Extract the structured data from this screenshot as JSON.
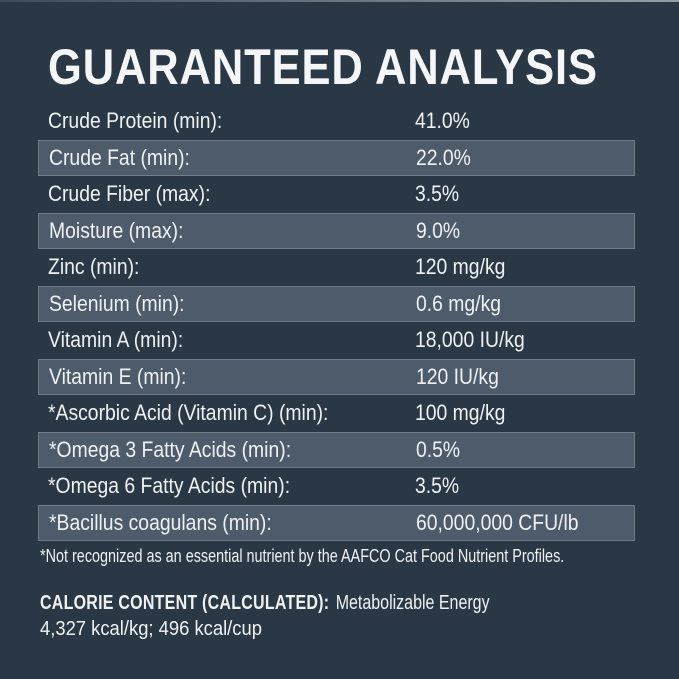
{
  "colors": {
    "background": "#2a3845",
    "stripe": "#4d5b6a",
    "stripe_border": "#6e7b88",
    "text": "#eef2f4"
  },
  "header": {
    "title": "GUARANTEED ANALYSIS"
  },
  "analysis_table": {
    "rows": [
      {
        "label": "Crude Protein (min):",
        "value": "41.0%"
      },
      {
        "label": "Crude Fat (min):",
        "value": "22.0%"
      },
      {
        "label": "Crude Fiber (max):",
        "value": "3.5%"
      },
      {
        "label": "Moisture (max):",
        "value": "9.0%"
      },
      {
        "label": "Zinc (min):",
        "value": "120 mg/kg"
      },
      {
        "label": "Selenium (min):",
        "value": "0.6 mg/kg"
      },
      {
        "label": "Vitamin A (min):",
        "value": "18,000 IU/kg"
      },
      {
        "label": "Vitamin E (min):",
        "value": "120 IU/kg"
      },
      {
        "label": "*Ascorbic Acid (Vitamin C) (min):",
        "value": "100 mg/kg"
      },
      {
        "label": "*Omega 3 Fatty Acids (min):",
        "value": "0.5%"
      },
      {
        "label": "*Omega 6 Fatty Acids (min):",
        "value": "3.5%"
      },
      {
        "label": "*Bacillus coagulans (min):",
        "value": "60,000,000 CFU/lb"
      }
    ]
  },
  "footnote": "*Not recognized as an essential nutrient by the AAFCO Cat Food Nutrient Profiles.",
  "calorie_content": {
    "heading": "CALORIE CONTENT (CALCULATED):",
    "description": "Metabolizable Energy",
    "values": "4,327 kcal/kg; 496 kcal/cup"
  }
}
